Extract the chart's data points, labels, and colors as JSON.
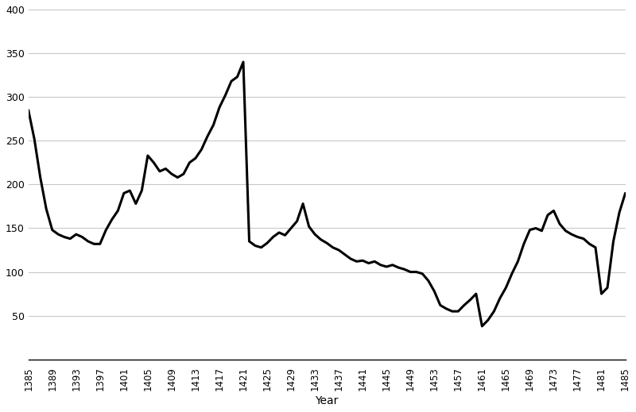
{
  "years": [
    1385,
    1386,
    1387,
    1388,
    1389,
    1390,
    1391,
    1392,
    1393,
    1394,
    1395,
    1396,
    1397,
    1398,
    1399,
    1400,
    1401,
    1402,
    1403,
    1404,
    1405,
    1406,
    1407,
    1408,
    1409,
    1410,
    1411,
    1412,
    1413,
    1414,
    1415,
    1416,
    1417,
    1418,
    1419,
    1420,
    1421,
    1422,
    1423,
    1424,
    1425,
    1426,
    1427,
    1428,
    1429,
    1430,
    1431,
    1432,
    1433,
    1434,
    1435,
    1436,
    1437,
    1438,
    1439,
    1440,
    1441,
    1442,
    1443,
    1444,
    1445,
    1446,
    1447,
    1448,
    1449,
    1450,
    1451,
    1452,
    1453,
    1454,
    1455,
    1456,
    1457,
    1458,
    1459,
    1460,
    1461,
    1462,
    1463,
    1464,
    1465,
    1466,
    1467,
    1468,
    1469,
    1470,
    1471,
    1472,
    1473,
    1474,
    1475,
    1476,
    1477,
    1478,
    1479,
    1480,
    1481,
    1482,
    1483,
    1484,
    1485
  ],
  "values": [
    285,
    252,
    208,
    172,
    148,
    143,
    140,
    138,
    143,
    140,
    135,
    132,
    132,
    148,
    160,
    170,
    190,
    193,
    178,
    193,
    233,
    225,
    215,
    218,
    212,
    208,
    212,
    225,
    230,
    240,
    255,
    268,
    288,
    302,
    318,
    323,
    340,
    135,
    130,
    128,
    133,
    140,
    145,
    142,
    150,
    158,
    178,
    152,
    143,
    137,
    133,
    128,
    125,
    120,
    115,
    112,
    113,
    110,
    112,
    108,
    106,
    108,
    105,
    103,
    100,
    100,
    98,
    90,
    78,
    62,
    58,
    55,
    55,
    62,
    68,
    75,
    38,
    45,
    55,
    70,
    82,
    98,
    112,
    132,
    148,
    150,
    147,
    165,
    170,
    155,
    147,
    143,
    140,
    138,
    132,
    128,
    75,
    82,
    135,
    168,
    190
  ],
  "xlabel": "Year",
  "ylabel": "",
  "title": "",
  "xlim": [
    1385,
    1485
  ],
  "ylim": [
    0,
    400
  ],
  "yticks": [
    50,
    100,
    150,
    200,
    250,
    300,
    350,
    400
  ],
  "xticks": [
    1385,
    1389,
    1393,
    1397,
    1401,
    1405,
    1409,
    1413,
    1417,
    1421,
    1425,
    1429,
    1433,
    1437,
    1441,
    1445,
    1449,
    1453,
    1457,
    1461,
    1465,
    1469,
    1473,
    1477,
    1481,
    1485
  ],
  "line_color": "#000000",
  "line_width": 2.2,
  "bg_color": "#ffffff",
  "grid_color": "#c8c8c8"
}
